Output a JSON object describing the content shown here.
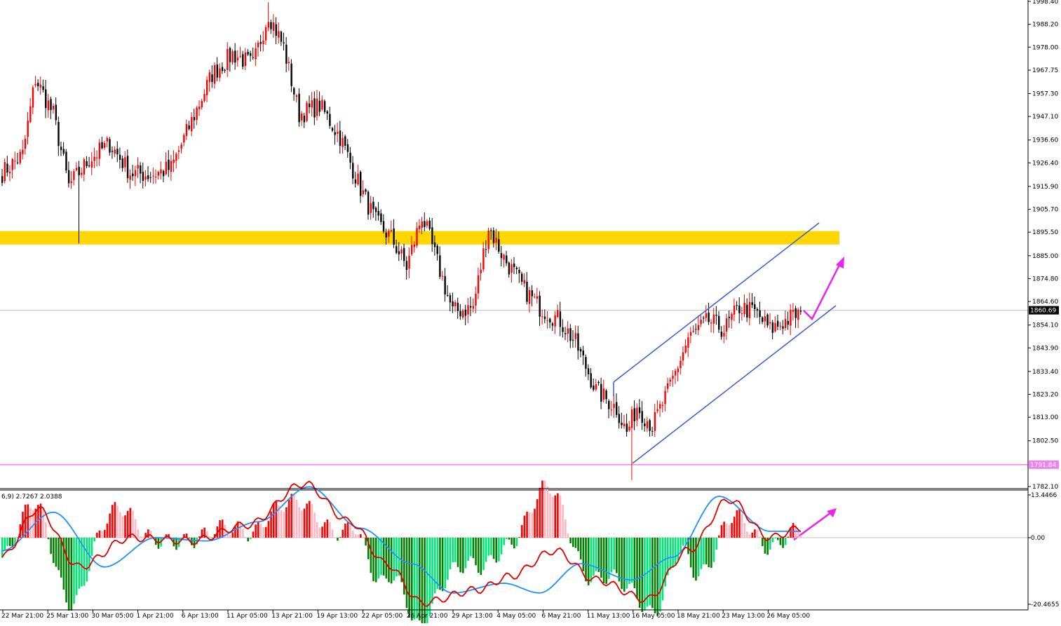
{
  "chart_data": [
    {
      "type": "candlestick",
      "panel": "price",
      "y_axis_ticks": [
        "1998.40",
        "1988.20",
        "1978.00",
        "1967.75",
        "1957.30",
        "1947.10",
        "1936.60",
        "1926.40",
        "1915.90",
        "1905.70",
        "1895.50",
        "1885.00",
        "1874.80",
        "1864.60",
        "1854.10",
        "1843.90",
        "1833.40",
        "1823.20",
        "1813.00",
        "1802.50",
        "1782.10"
      ],
      "ylim": [
        1782.1,
        1998.4
      ],
      "current_price": "1860.69",
      "support_level": "1791.84",
      "resistance_zone": [
        1890.0,
        1896.0
      ],
      "x_tick_labels": [
        "22 Mar 21:00",
        "25 Mar 13:00",
        "30 Mar 05:00",
        "1 Apr 21:00",
        "6 Apr 13:00",
        "11 Apr 05:00",
        "13 Apr 21:00",
        "19 Apr 13:00",
        "22 Apr 05:00",
        "26 Apr 21:00",
        "29 Apr 13:00",
        "4 May 05:00",
        "6 May 21:00",
        "11 May 13:00",
        "16 May 05:00",
        "18 May 21:00",
        "23 May 13:00",
        "26 May 05:00"
      ],
      "anchor_closes": [
        [
          0,
          1922
        ],
        [
          8,
          1930
        ],
        [
          13,
          1964
        ],
        [
          20,
          1948
        ],
        [
          26,
          1916
        ],
        [
          34,
          1928
        ],
        [
          42,
          1935
        ],
        [
          50,
          1922
        ],
        [
          58,
          1921
        ],
        [
          66,
          1924
        ],
        [
          74,
          1945
        ],
        [
          82,
          1966
        ],
        [
          90,
          1975
        ],
        [
          98,
          1970
        ],
        [
          104,
          1993
        ],
        [
          110,
          1978
        ],
        [
          116,
          1948
        ],
        [
          124,
          1952
        ],
        [
          132,
          1938
        ],
        [
          140,
          1915
        ],
        [
          146,
          1900
        ],
        [
          152,
          1893
        ],
        [
          158,
          1880
        ],
        [
          164,
          1903
        ],
        [
          170,
          1882
        ],
        [
          176,
          1860
        ],
        [
          184,
          1862
        ],
        [
          190,
          1898
        ],
        [
          196,
          1884
        ],
        [
          204,
          1870
        ],
        [
          210,
          1862
        ],
        [
          218,
          1856
        ],
        [
          224,
          1846
        ],
        [
          232,
          1825
        ],
        [
          240,
          1817
        ],
        [
          244,
          1806
        ],
        [
          248,
          1818
        ],
        [
          254,
          1809
        ],
        [
          260,
          1824
        ],
        [
          268,
          1848
        ],
        [
          276,
          1856
        ],
        [
          282,
          1852
        ],
        [
          288,
          1862
        ],
        [
          294,
          1860
        ],
        [
          300,
          1852
        ],
        [
          306,
          1856
        ],
        [
          312,
          1860
        ]
      ],
      "colors": {
        "up": "#ff0000",
        "down": "#000000",
        "channel": "#3a5bd6",
        "zone": "#ffd700",
        "support": "#ee82ee",
        "arrow": "#ee22ee",
        "grid": "#c0c0c0"
      }
    },
    {
      "type": "histogram+lines",
      "panel": "oscillator",
      "header": "6,9) 2.7267 2.0388",
      "y_axis_ticks": [
        "13.4466",
        "0.00",
        "-20.4655"
      ],
      "ylim": [
        -20.4655,
        13.4466
      ],
      "signal_anchors": [
        [
          0,
          -4
        ],
        [
          20,
          8
        ],
        [
          40,
          -9
        ],
        [
          60,
          0
        ],
        [
          80,
          -1
        ],
        [
          100,
          5
        ],
        [
          120,
          16
        ],
        [
          140,
          3
        ],
        [
          160,
          -8
        ],
        [
          176,
          -17
        ],
        [
          196,
          -14
        ],
        [
          210,
          -17
        ],
        [
          226,
          -8
        ],
        [
          246,
          -13
        ],
        [
          262,
          -6
        ],
        [
          280,
          13
        ],
        [
          300,
          2
        ],
        [
          312,
          2
        ]
      ],
      "main_anchors": [
        [
          0,
          -6
        ],
        [
          14,
          9
        ],
        [
          30,
          -9
        ],
        [
          50,
          0
        ],
        [
          74,
          -1
        ],
        [
          96,
          4
        ],
        [
          118,
          17
        ],
        [
          136,
          5
        ],
        [
          150,
          -8
        ],
        [
          164,
          -20
        ],
        [
          186,
          -16
        ],
        [
          198,
          -12
        ],
        [
          216,
          -4
        ],
        [
          232,
          -13
        ],
        [
          252,
          -19
        ],
        [
          268,
          -4
        ],
        [
          284,
          12
        ],
        [
          300,
          0
        ],
        [
          312,
          3
        ]
      ],
      "colors": {
        "hist_up_strong": "#ff0000",
        "hist_up_weak": "#ffb6c1",
        "hist_down_strong": "#008000",
        "hist_down_weak": "#00e676",
        "signal": "#1e90ff",
        "main": "#e00000"
      }
    }
  ]
}
